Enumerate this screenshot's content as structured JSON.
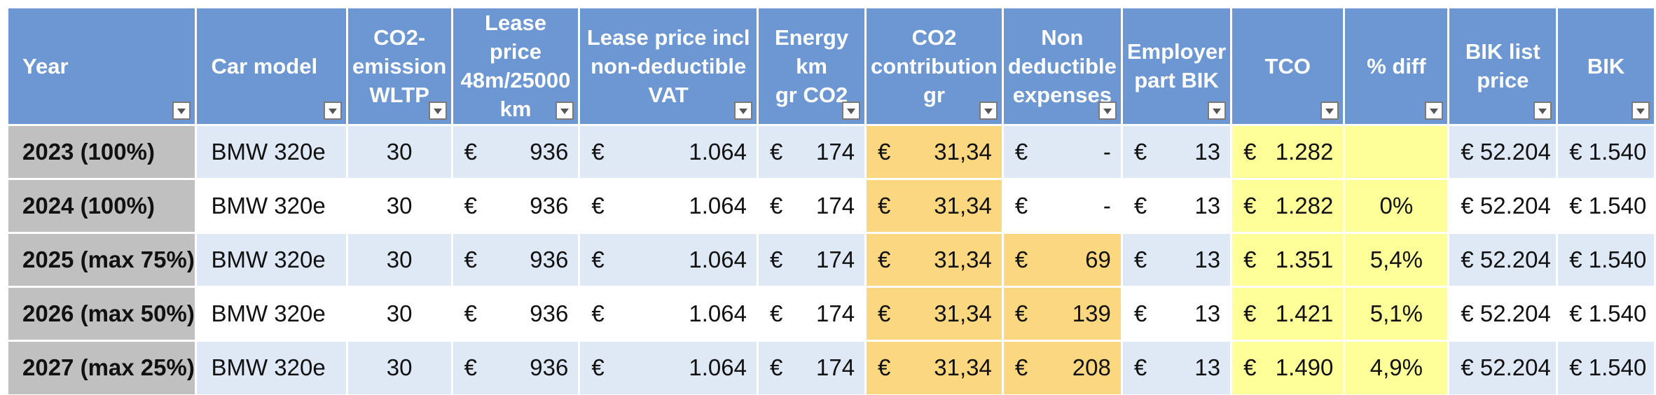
{
  "colors": {
    "header_bg": "#6d97d3",
    "row_alt_bg": "#dfe8f5",
    "year_bg": "#c0c0c0",
    "co2_highlight": "#fbd780",
    "tco_highlight": "#ffff99"
  },
  "icons": {
    "filter": "filter-dropdown-icon"
  },
  "headers": [
    {
      "key": "year",
      "label": "Year"
    },
    {
      "key": "model",
      "label": "Car model"
    },
    {
      "key": "co2",
      "label": "CO2-\nemission\nWLTP"
    },
    {
      "key": "lease",
      "label": "Lease price\n48m/25000\nkm"
    },
    {
      "key": "lease_vat",
      "label": "Lease price incl\nnon-deductible\nVAT"
    },
    {
      "key": "energy",
      "label": "Energy km\ngr CO2"
    },
    {
      "key": "co2_contrib",
      "label": "CO2\ncontribution\ngr"
    },
    {
      "key": "nondeduct",
      "label": "Non\ndeductible\nexpenses"
    },
    {
      "key": "employer",
      "label": "Employer\npart BIK"
    },
    {
      "key": "tco",
      "label": "TCO"
    },
    {
      "key": "diff",
      "label": "% diff"
    },
    {
      "key": "bik_list",
      "label": "BIK list\nprice"
    },
    {
      "key": "bik",
      "label": "BIK"
    }
  ],
  "rows": [
    {
      "year": "2023 (100%)",
      "model": "BMW 320e",
      "co2": "30",
      "lease": "936",
      "lease_vat": "1.064",
      "energy": "174",
      "co2_contrib": "31,34",
      "nondeduct": "-",
      "employer": "13",
      "tco": "1.282",
      "diff": "",
      "bik_list": "€ 52.204",
      "bik": "€ 1.540"
    },
    {
      "year": "2024 (100%)",
      "model": "BMW 320e",
      "co2": "30",
      "lease": "936",
      "lease_vat": "1.064",
      "energy": "174",
      "co2_contrib": "31,34",
      "nondeduct": "-",
      "employer": "13",
      "tco": "1.282",
      "diff": "0%",
      "bik_list": "€ 52.204",
      "bik": "€ 1.540"
    },
    {
      "year": "2025 (max 75%)",
      "model": "BMW 320e",
      "co2": "30",
      "lease": "936",
      "lease_vat": "1.064",
      "energy": "174",
      "co2_contrib": "31,34",
      "nondeduct": "69",
      "employer": "13",
      "tco": "1.351",
      "diff": "5,4%",
      "bik_list": "€ 52.204",
      "bik": "€ 1.540"
    },
    {
      "year": "2026 (max 50%)",
      "model": "BMW 320e",
      "co2": "30",
      "lease": "936",
      "lease_vat": "1.064",
      "energy": "174",
      "co2_contrib": "31,34",
      "nondeduct": "139",
      "employer": "13",
      "tco": "1.421",
      "diff": "5,1%",
      "bik_list": "€ 52.204",
      "bik": "€ 1.540"
    },
    {
      "year": "2027 (max 25%)",
      "model": "BMW 320e",
      "co2": "30",
      "lease": "936",
      "lease_vat": "1.064",
      "energy": "174",
      "co2_contrib": "31,34",
      "nondeduct": "208",
      "employer": "13",
      "tco": "1.490",
      "diff": "4,9%",
      "bik_list": "€ 52.204",
      "bik": "€ 1.540"
    }
  ],
  "currency_symbol": "€"
}
